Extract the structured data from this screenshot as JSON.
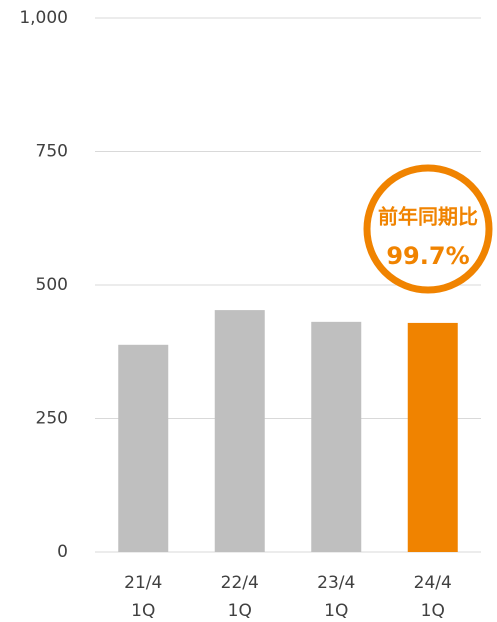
{
  "chart_data": {
    "type": "bar",
    "categories": [
      "21/4\n1Q",
      "22/4\n1Q",
      "23/4\n1Q",
      "24/4\n1Q"
    ],
    "values": [
      388,
      453,
      431,
      429
    ],
    "colors": [
      "#bfbfbf",
      "#bfbfbf",
      "#bfbfbf",
      "#f08300"
    ],
    "ylim": [
      0,
      1000
    ],
    "yticks": [
      0,
      250,
      500,
      750,
      {
        "value": 1000,
        "label": "1,000"
      }
    ],
    "grid": true,
    "annotation": {
      "title": "前年同期比",
      "value_label": "99.7%"
    }
  }
}
